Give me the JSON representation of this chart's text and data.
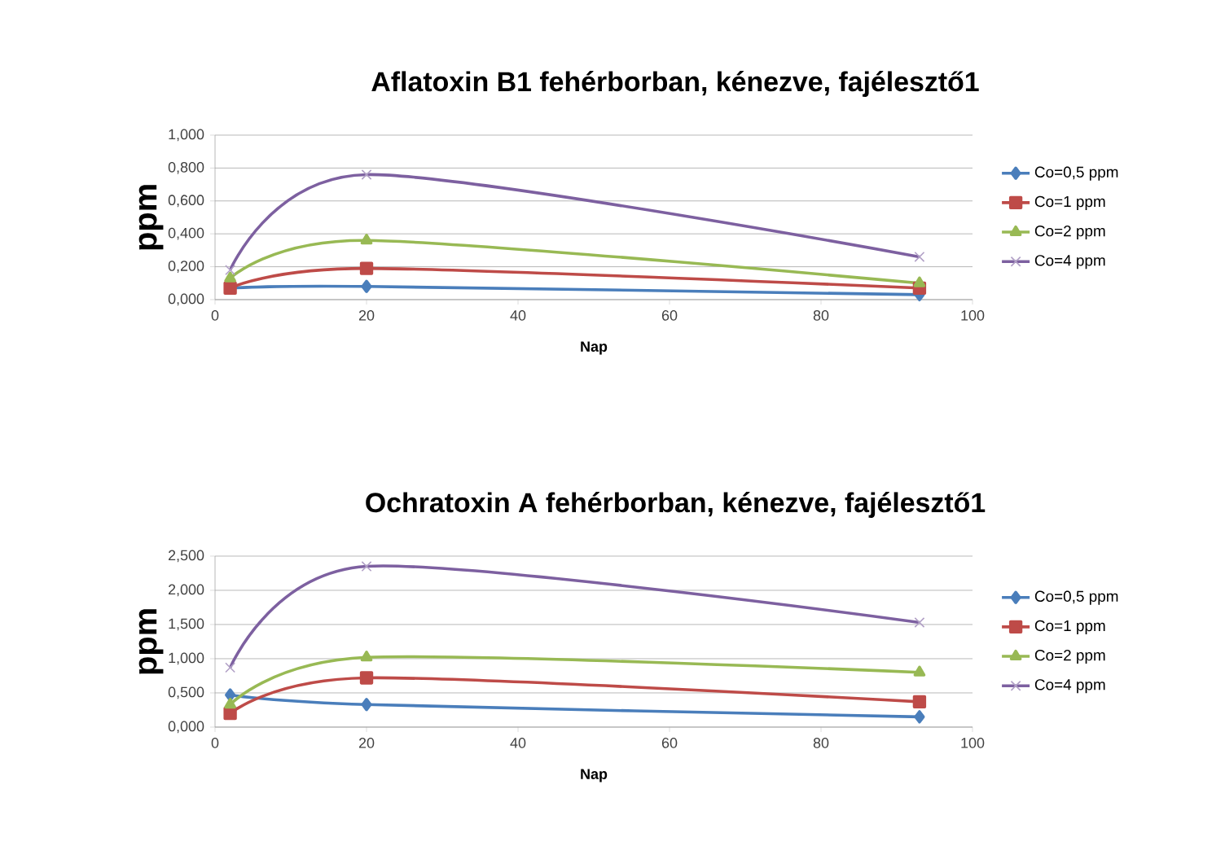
{
  "chart_data": [
    {
      "type": "line",
      "title": "Aflatoxin B1 fehérborban, kénezve, fajélesztő1",
      "xlabel": "Nap",
      "ylabel": "ppm",
      "x": [
        2,
        20,
        93
      ],
      "xlim": [
        0,
        100
      ],
      "xticks": [
        0,
        20,
        40,
        60,
        80,
        100
      ],
      "ylim": [
        0,
        1
      ],
      "yticks": [
        {
          "value": 0,
          "label": "0,000"
        },
        {
          "value": 0.2,
          "label": "0,200"
        },
        {
          "value": 0.4,
          "label": "0,400"
        },
        {
          "value": 0.6,
          "label": "0,600"
        },
        {
          "value": 0.8,
          "label": "0,800"
        },
        {
          "value": 1,
          "label": "1,000"
        }
      ],
      "grid": "y",
      "legend": "right",
      "line_style": "solid",
      "series": [
        {
          "name": "Co=0,5 ppm",
          "color": "#4a7ebb",
          "marker": "diamond",
          "values": [
            0.07,
            0.08,
            0.03
          ]
        },
        {
          "name": "Co=1 ppm",
          "color": "#be4b48",
          "marker": "square",
          "values": [
            0.07,
            0.19,
            0.07
          ]
        },
        {
          "name": "Co=2 ppm",
          "color": "#98b954",
          "marker": "triangle",
          "values": [
            0.13,
            0.36,
            0.1
          ]
        },
        {
          "name": "Co=4 ppm",
          "color": "#7d60a0",
          "marker": "cross",
          "values": [
            0.18,
            0.76,
            0.26
          ]
        }
      ]
    },
    {
      "type": "line",
      "title": "Ochratoxin A fehérborban, kénezve, fajélesztő1",
      "xlabel": "Nap",
      "ylabel": "ppm",
      "x": [
        2,
        20,
        93
      ],
      "xlim": [
        0,
        100
      ],
      "xticks": [
        0,
        20,
        40,
        60,
        80,
        100
      ],
      "ylim": [
        0,
        2.5
      ],
      "yticks": [
        {
          "value": 0,
          "label": "0,000"
        },
        {
          "value": 0.5,
          "label": "0,500"
        },
        {
          "value": 1,
          "label": "1,000"
        },
        {
          "value": 1.5,
          "label": "1,500"
        },
        {
          "value": 2,
          "label": "2,000"
        },
        {
          "value": 2.5,
          "label": "2,500"
        }
      ],
      "grid": "y",
      "legend": "right",
      "line_style": "solid",
      "series": [
        {
          "name": "Co=0,5 ppm",
          "color": "#4a7ebb",
          "marker": "diamond",
          "values": [
            0.47,
            0.33,
            0.15
          ]
        },
        {
          "name": "Co=1 ppm",
          "color": "#be4b48",
          "marker": "square",
          "values": [
            0.2,
            0.72,
            0.37
          ]
        },
        {
          "name": "Co=2 ppm",
          "color": "#98b954",
          "marker": "triangle",
          "values": [
            0.33,
            1.02,
            0.8
          ]
        },
        {
          "name": "Co=4 ppm",
          "color": "#7d60a0",
          "marker": "cross",
          "values": [
            0.87,
            2.35,
            1.53
          ]
        }
      ]
    }
  ]
}
